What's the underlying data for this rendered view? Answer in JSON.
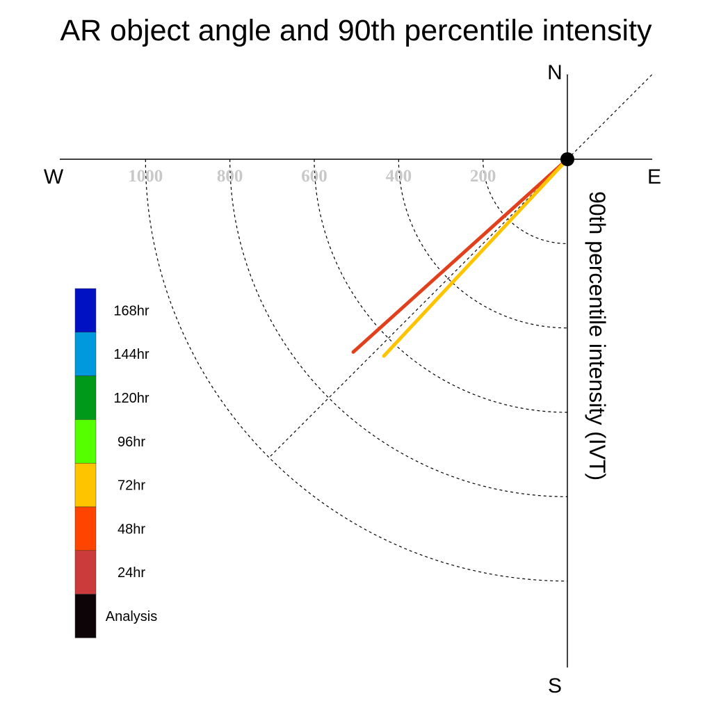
{
  "chart_data": {
    "type": "polar-vector",
    "title": "AR object angle and 90th percentile intensity",
    "axis_label": "90th percentile intensity (IVT)",
    "compass": {
      "north": "N",
      "south": "S",
      "east": "E",
      "west": "W"
    },
    "radial_ticks": [
      200,
      400,
      600,
      800,
      1000
    ],
    "radial_tick_labels": [
      "200",
      "400",
      "600",
      "800",
      "1000"
    ],
    "rmax": 1200,
    "angle_convention": "degrees counterclockwise from east",
    "guide_angle_deg": 225,
    "legend": [
      {
        "label": "168hr",
        "color": "#0011c4"
      },
      {
        "label": "144hr",
        "color": "#0099dd"
      },
      {
        "label": "120hr",
        "color": "#00991a"
      },
      {
        "label": "96hr",
        "color": "#55ff00"
      },
      {
        "label": "72hr",
        "color": "#ffc400"
      },
      {
        "label": "48hr",
        "color": "#ff4400"
      },
      {
        "label": "24hr",
        "color": "#cc3b3b"
      },
      {
        "label": "Analysis",
        "color": "#0d0408"
      }
    ],
    "series": [
      {
        "name": "48hr",
        "color": "#e2401c",
        "magnitude": 683,
        "angle_deg": 222
      },
      {
        "name": "72hr",
        "color": "#ffc400",
        "magnitude": 638,
        "angle_deg": 227
      }
    ],
    "origin_marker": {
      "color": "#000000"
    }
  }
}
